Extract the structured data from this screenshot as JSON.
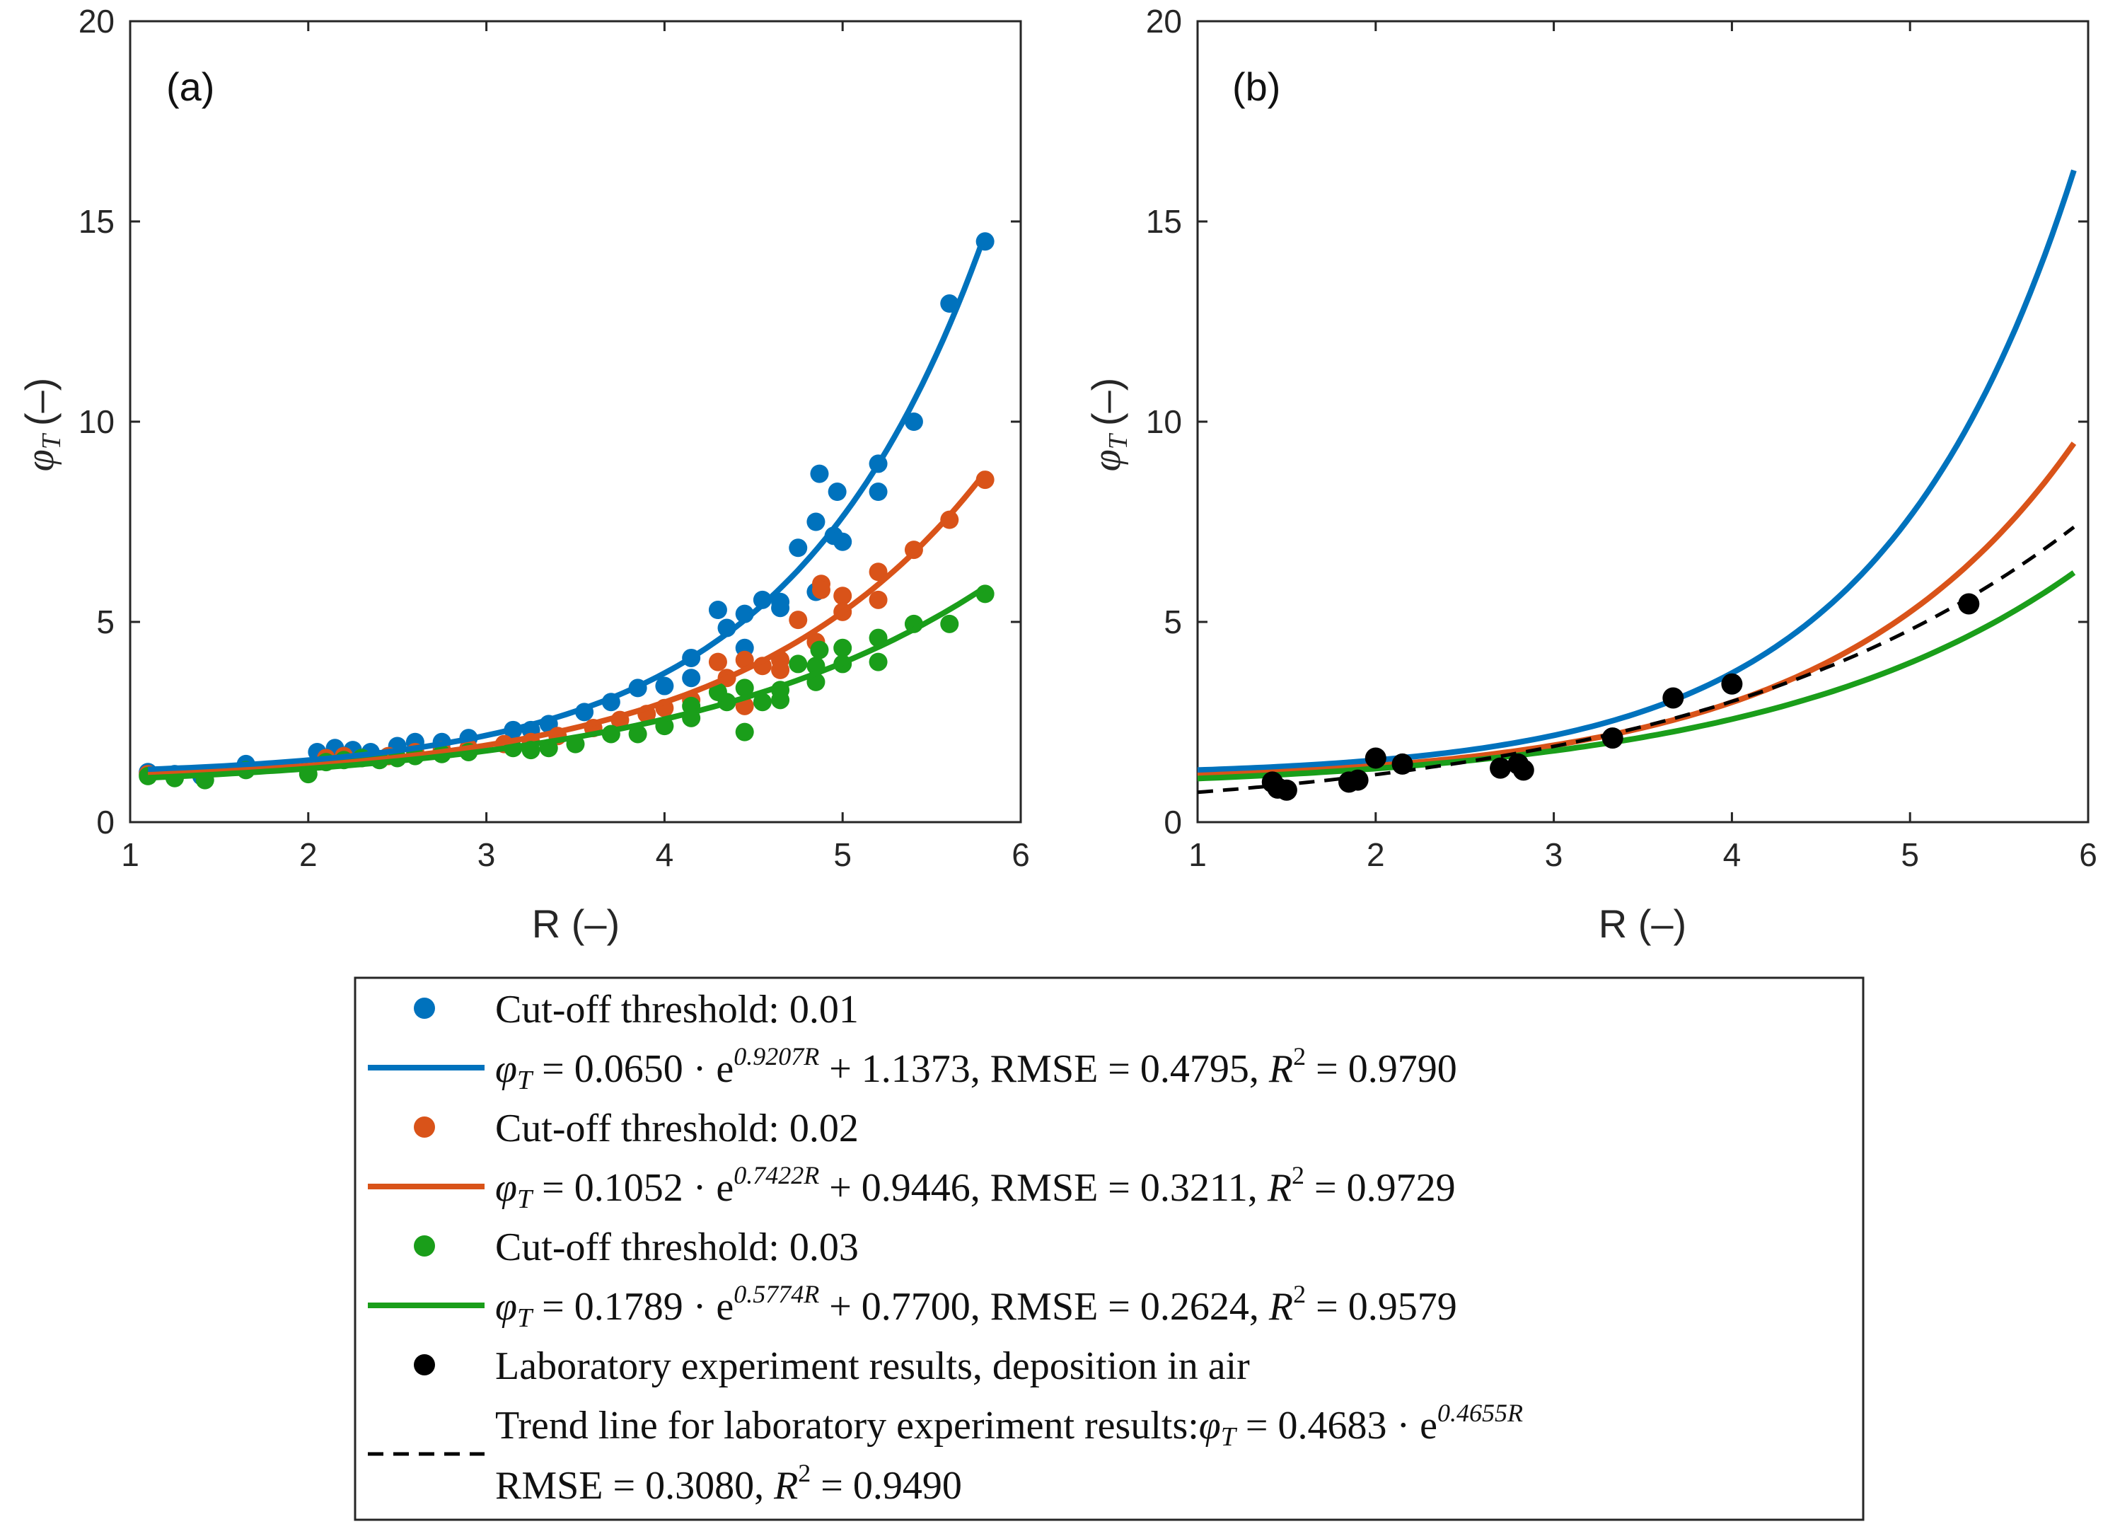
{
  "chart_data": [
    {
      "type": "scatter",
      "panel_label": "(a)",
      "xlabel": "R (–)",
      "ylabel": "(–)",
      "ylabel_symbol": "φ",
      "ylabel_sub": "T",
      "xlim": [
        1,
        6
      ],
      "ylim": [
        0,
        20
      ],
      "xticks": [
        "1",
        "2",
        "3",
        "4",
        "5",
        "6"
      ],
      "yticks": [
        "0",
        "5",
        "10",
        "15",
        "20"
      ],
      "grid": false,
      "series": [
        {
          "kind": "points",
          "color": "#0072BD",
          "points": [
            [
              1.1,
              1.25
            ],
            [
              1.25,
              1.2
            ],
            [
              1.4,
              1.15
            ],
            [
              1.65,
              1.45
            ],
            [
              2.05,
              1.75
            ],
            [
              2.15,
              1.85
            ],
            [
              2.25,
              1.8
            ],
            [
              2.35,
              1.75
            ],
            [
              2.5,
              1.9
            ],
            [
              2.6,
              2.0
            ],
            [
              2.75,
              2.0
            ],
            [
              2.9,
              2.1
            ],
            [
              3.15,
              2.3
            ],
            [
              3.25,
              2.3
            ],
            [
              3.35,
              2.45
            ],
            [
              3.55,
              2.75
            ],
            [
              3.7,
              3.0
            ],
            [
              3.85,
              3.35
            ],
            [
              4.0,
              3.4
            ],
            [
              4.15,
              4.1
            ],
            [
              4.15,
              3.6
            ],
            [
              4.3,
              5.3
            ],
            [
              4.35,
              4.85
            ],
            [
              4.45,
              5.2
            ],
            [
              4.45,
              4.35
            ],
            [
              4.55,
              5.55
            ],
            [
              4.65,
              5.5
            ],
            [
              4.65,
              5.35
            ],
            [
              4.75,
              6.85
            ],
            [
              4.85,
              7.5
            ],
            [
              4.85,
              5.75
            ],
            [
              4.87,
              8.7
            ],
            [
              4.95,
              7.15
            ],
            [
              4.97,
              8.25
            ],
            [
              5.0,
              7.0
            ],
            [
              5.2,
              8.95
            ],
            [
              5.2,
              8.25
            ],
            [
              5.4,
              10.0
            ],
            [
              5.6,
              12.95
            ],
            [
              5.8,
              14.5
            ]
          ]
        },
        {
          "kind": "points",
          "color": "#D95319",
          "points": [
            [
              1.1,
              1.2
            ],
            [
              1.25,
              1.15
            ],
            [
              2.1,
              1.6
            ],
            [
              2.2,
              1.65
            ],
            [
              2.3,
              1.6
            ],
            [
              2.45,
              1.65
            ],
            [
              2.6,
              1.75
            ],
            [
              2.75,
              1.8
            ],
            [
              2.9,
              1.85
            ],
            [
              3.1,
              1.95
            ],
            [
              3.25,
              2.0
            ],
            [
              3.4,
              2.15
            ],
            [
              3.6,
              2.35
            ],
            [
              3.75,
              2.55
            ],
            [
              3.9,
              2.7
            ],
            [
              4.0,
              2.85
            ],
            [
              4.15,
              3.05
            ],
            [
              4.3,
              4.0
            ],
            [
              4.35,
              3.6
            ],
            [
              4.45,
              4.05
            ],
            [
              4.45,
              2.9
            ],
            [
              4.55,
              3.9
            ],
            [
              4.65,
              4.05
            ],
            [
              4.65,
              3.8
            ],
            [
              4.75,
              5.05
            ],
            [
              4.85,
              4.5
            ],
            [
              4.88,
              5.95
            ],
            [
              4.88,
              5.8
            ],
            [
              5.0,
              5.65
            ],
            [
              5.0,
              5.25
            ],
            [
              5.2,
              6.25
            ],
            [
              5.2,
              5.55
            ],
            [
              5.4,
              6.8
            ],
            [
              5.6,
              7.55
            ],
            [
              5.8,
              8.55
            ]
          ]
        },
        {
          "kind": "points",
          "color": "#1A9E1A",
          "points": [
            [
              1.1,
              1.15
            ],
            [
              1.25,
              1.1
            ],
            [
              1.42,
              1.05
            ],
            [
              1.65,
              1.3
            ],
            [
              2.0,
              1.2
            ],
            [
              2.1,
              1.5
            ],
            [
              2.2,
              1.55
            ],
            [
              2.3,
              1.6
            ],
            [
              2.4,
              1.55
            ],
            [
              2.5,
              1.6
            ],
            [
              2.6,
              1.65
            ],
            [
              2.75,
              1.7
            ],
            [
              2.9,
              1.75
            ],
            [
              3.15,
              1.85
            ],
            [
              3.25,
              1.8
            ],
            [
              3.35,
              1.85
            ],
            [
              3.5,
              1.95
            ],
            [
              3.7,
              2.2
            ],
            [
              3.85,
              2.2
            ],
            [
              4.0,
              2.4
            ],
            [
              4.15,
              2.6
            ],
            [
              4.15,
              2.9
            ],
            [
              4.3,
              3.25
            ],
            [
              4.35,
              3.0
            ],
            [
              4.45,
              3.35
            ],
            [
              4.45,
              2.25
            ],
            [
              4.55,
              3.0
            ],
            [
              4.65,
              3.3
            ],
            [
              4.65,
              3.05
            ],
            [
              4.75,
              3.95
            ],
            [
              4.85,
              3.5
            ],
            [
              4.85,
              3.9
            ],
            [
              4.87,
              4.3
            ],
            [
              5.0,
              4.35
            ],
            [
              5.0,
              3.95
            ],
            [
              5.2,
              4.6
            ],
            [
              5.2,
              4.0
            ],
            [
              5.4,
              4.95
            ],
            [
              5.6,
              4.95
            ],
            [
              5.8,
              5.7
            ]
          ]
        },
        {
          "kind": "curve",
          "color": "#0072BD",
          "a": 0.065,
          "b": 0.9207,
          "c": 1.1373,
          "x_range": [
            1.1,
            5.8
          ]
        },
        {
          "kind": "curve",
          "color": "#D95319",
          "a": 0.1052,
          "b": 0.7422,
          "c": 0.9446,
          "x_range": [
            1.1,
            5.8
          ]
        },
        {
          "kind": "curve",
          "color": "#1A9E1A",
          "a": 0.1789,
          "b": 0.5774,
          "c": 0.77,
          "x_range": [
            1.1,
            5.8
          ]
        }
      ]
    },
    {
      "type": "scatter",
      "panel_label": "(b)",
      "xlabel": "R (–)",
      "ylabel": "(–)",
      "ylabel_symbol": "φ",
      "ylabel_sub": "T",
      "xlim": [
        1,
        6
      ],
      "ylim": [
        0,
        20
      ],
      "xticks": [
        "1",
        "2",
        "3",
        "4",
        "5",
        "6"
      ],
      "yticks": [
        "0",
        "5",
        "10",
        "15",
        "20"
      ],
      "grid": false,
      "series": [
        {
          "kind": "curve",
          "color": "#0072BD",
          "a": 0.065,
          "b": 0.9207,
          "c": 1.1373,
          "x_range": [
            1,
            5.92
          ]
        },
        {
          "kind": "curve",
          "color": "#D95319",
          "a": 0.1052,
          "b": 0.7422,
          "c": 0.9446,
          "x_range": [
            1,
            5.92
          ]
        },
        {
          "kind": "curve",
          "color": "#1A9E1A",
          "a": 0.1789,
          "b": 0.5774,
          "c": 0.77,
          "x_range": [
            1,
            5.92
          ]
        },
        {
          "kind": "dashed-curve",
          "color": "#000000",
          "a": 0.4683,
          "b": 0.4655,
          "c": 0,
          "x_range": [
            1,
            5.92
          ]
        },
        {
          "kind": "points",
          "color": "#000000",
          "points": [
            [
              1.42,
              1.0
            ],
            [
              1.45,
              0.85
            ],
            [
              1.5,
              0.8
            ],
            [
              1.85,
              1.0
            ],
            [
              1.9,
              1.05
            ],
            [
              2.0,
              1.6
            ],
            [
              2.15,
              1.45
            ],
            [
              2.7,
              1.35
            ],
            [
              2.8,
              1.45
            ],
            [
              2.83,
              1.3
            ],
            [
              3.33,
              2.1
            ],
            [
              3.67,
              3.1
            ],
            [
              4.0,
              3.45
            ],
            [
              5.33,
              5.45
            ]
          ]
        }
      ]
    }
  ],
  "legend": {
    "items": [
      {
        "marker": "dot",
        "color": "#0072BD",
        "text": "Cut-off threshold:  0.01"
      },
      {
        "marker": "line",
        "color": "#0072BD",
        "pre": "φ",
        "sub": "T",
        "eq": " = 0.0650 · e",
        "sup": "0.9207R",
        "post": " + 1.1373,  RMSE = 0.4795,  ",
        "r2": "R",
        "r2sup": "2",
        "r2post": " = 0.9790"
      },
      {
        "marker": "dot",
        "color": "#D95319",
        "text": "Cut-off threshold:  0.02"
      },
      {
        "marker": "line",
        "color": "#D95319",
        "pre": "φ",
        "sub": "T",
        "eq": " = 0.1052 · e",
        "sup": "0.7422R",
        "post": " + 0.9446,  RMSE = 0.3211,  ",
        "r2": "R",
        "r2sup": "2",
        "r2post": " = 0.9729"
      },
      {
        "marker": "dot",
        "color": "#1A9E1A",
        "text": "Cut-off threshold:  0.03"
      },
      {
        "marker": "line",
        "color": "#1A9E1A",
        "pre": "φ",
        "sub": "T",
        "eq": " = 0.1789 · e",
        "sup": "0.5774R",
        "post": " + 0.7700,  RMSE = 0.2624,  ",
        "r2": "R",
        "r2sup": "2",
        "r2post": " = 0.9579"
      },
      {
        "marker": "dot",
        "color": "#000000",
        "text": "Laboratory experiment results, deposition in air"
      }
    ],
    "trend": {
      "line1": "Trend line for laboratory experiment results:",
      "pre": "φ",
      "sub": "T",
      "eq": " = 0.4683 · e",
      "sup": "0.4655R",
      "line2_pre": "RMSE = 0.3080,  ",
      "r2": "R",
      "r2sup": "2",
      "r2post": " = 0.9490"
    }
  }
}
